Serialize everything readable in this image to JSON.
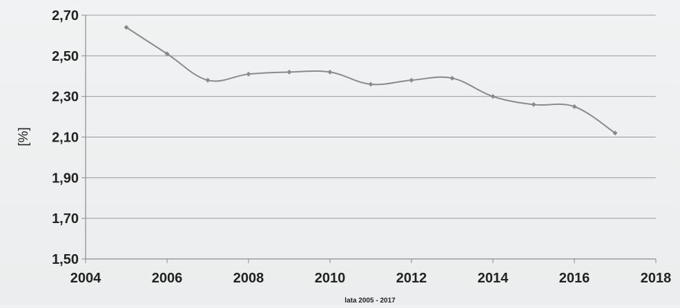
{
  "chart_data": {
    "type": "line",
    "title": "",
    "xlabel": "lata 2005 - 2017",
    "ylabel": "[%]",
    "x": [
      2005,
      2006,
      2007,
      2008,
      2009,
      2010,
      2011,
      2012,
      2013,
      2014,
      2015,
      2016,
      2017
    ],
    "series": [
      {
        "values": [
          2.64,
          2.51,
          2.38,
          2.41,
          2.42,
          2.42,
          2.36,
          2.38,
          2.39,
          2.3,
          2.26,
          2.25,
          2.12
        ]
      }
    ],
    "xlim": [
      2004,
      2018
    ],
    "ylim": [
      1.5,
      2.7
    ],
    "x_ticks": [
      "2004",
      "2006",
      "2008",
      "2010",
      "2012",
      "2014",
      "2016",
      "2018"
    ],
    "y_ticks": [
      "1,50",
      "1,70",
      "1,90",
      "2,10",
      "2,30",
      "2,50",
      "2,70"
    ],
    "grid": "horizontal",
    "legend": "none",
    "colors": {
      "line": "#8a8a8a",
      "marker": "#8a8a8a",
      "grid": "#9a9a9a",
      "axis": "#8a8a8a"
    }
  }
}
